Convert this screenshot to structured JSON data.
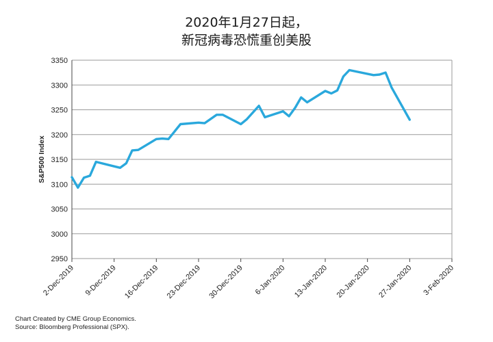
{
  "chart_data": {
    "type": "line",
    "title": "2020年1月27日起，",
    "subtitle": "新冠病毒恐慌重创美股",
    "ylabel": "S&P500 Index",
    "xlabel": "",
    "ylim": [
      2950,
      3350
    ],
    "yticks": [
      2950,
      3000,
      3050,
      3100,
      3150,
      3200,
      3250,
      3300,
      3350
    ],
    "xlim": [
      "2019-12-02",
      "2020-02-03"
    ],
    "xticks": [
      "2-Dec-2019",
      "9-Dec-2019",
      "16-Dec-2019",
      "23-Dec-2019",
      "30-Dec-2019",
      "6-Jan-2020",
      "13-Jan-2020",
      "20-Jan-2020",
      "27-Jan-2020",
      "3-Feb-2020"
    ],
    "grid": true,
    "series": [
      {
        "color": "#2aa8dc",
        "x": [
          "2019-12-02",
          "2019-12-03",
          "2019-12-04",
          "2019-12-05",
          "2019-12-06",
          "2019-12-09",
          "2019-12-10",
          "2019-12-11",
          "2019-12-12",
          "2019-12-13",
          "2019-12-16",
          "2019-12-17",
          "2019-12-18",
          "2019-12-19",
          "2019-12-20",
          "2019-12-23",
          "2019-12-24",
          "2019-12-26",
          "2019-12-27",
          "2019-12-30",
          "2019-12-31",
          "2020-01-02",
          "2020-01-03",
          "2020-01-06",
          "2020-01-07",
          "2020-01-08",
          "2020-01-09",
          "2020-01-10",
          "2020-01-13",
          "2020-01-14",
          "2020-01-15",
          "2020-01-16",
          "2020-01-17",
          "2020-01-21",
          "2020-01-22",
          "2020-01-23",
          "2020-01-24",
          "2020-01-27"
        ],
        "values": [
          3114,
          3093,
          3113,
          3117,
          3145,
          3136,
          3133,
          3142,
          3168,
          3169,
          3191,
          3192,
          3191,
          3206,
          3221,
          3224,
          3223,
          3240,
          3240,
          3221,
          3231,
          3258,
          3235,
          3247,
          3237,
          3254,
          3275,
          3265,
          3288,
          3283,
          3289,
          3317,
          3330,
          3320,
          3321,
          3325,
          3295,
          3230
        ]
      }
    ]
  },
  "footer": {
    "line1": "Chart Created by CME Group Economics.",
    "line2": "Source:  Bloomberg Professional (SPX)."
  }
}
